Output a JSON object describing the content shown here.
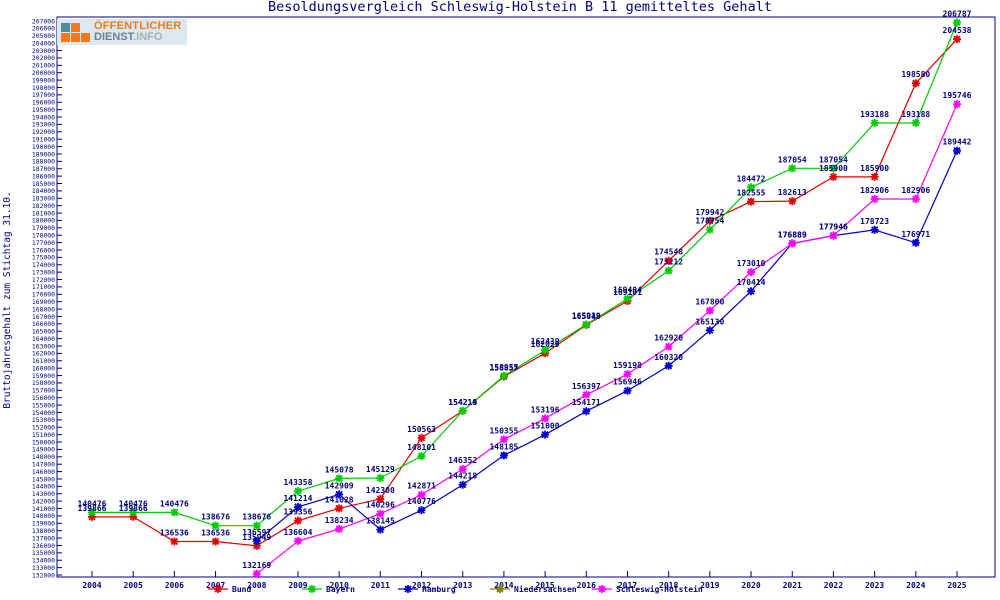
{
  "title": "Besoldungsvergleich Schleswig-Holstein B 11 gemitteltes Gehalt",
  "y_axis_label": "Bruttojahresgehalt zum Stichtag 31.10.",
  "logo": {
    "line1": "ÖFFENTLICHER",
    "line2_a": "DIENST",
    "line2_b": ".INFO"
  },
  "colors": {
    "axis": "#000080",
    "label_text": "#000080",
    "bund": "#e60000",
    "bayern": "#00cc00",
    "hamburg": "#0000cc",
    "niedersachsen": "#808000",
    "schleswig_holstein": "#ff00ff"
  },
  "chart_data": {
    "type": "line",
    "title": "Besoldungsvergleich Schleswig-Holstein B 11 gemitteltes Gehalt",
    "xlabel": "",
    "ylabel": "Bruttojahresgehalt zum Stichtag 31.10.",
    "ylim": [
      132000,
      207000
    ],
    "ytick_step": 1000,
    "grid": false,
    "legend_position": "bottom",
    "x": [
      2004,
      2005,
      2006,
      2007,
      2008,
      2009,
      2010,
      2011,
      2012,
      2013,
      2014,
      2015,
      2016,
      2017,
      2018,
      2019,
      2020,
      2021,
      2022,
      2023,
      2024,
      2025
    ],
    "series": [
      {
        "name": "Bund",
        "color": "#e60000",
        "values": [
          139866,
          139866,
          136536,
          136536,
          135949,
          139356,
          141028,
          142300,
          150563,
          154214,
          158857,
          162029,
          165848,
          169101,
          174548,
          179942,
          182555,
          182613,
          185900,
          185900,
          198580,
          204538
        ]
      },
      {
        "name": "Bayern",
        "color": "#00cc00",
        "values": [
          140476,
          140476,
          140476,
          138676,
          138676,
          143358,
          145078,
          145129,
          148101,
          154219,
          158955,
          162439,
          165919,
          169404,
          173212,
          178754,
          184472,
          187054,
          187054,
          193188,
          193188,
          206787
        ]
      },
      {
        "name": "Hamburg",
        "color": "#0000cc",
        "values": [
          null,
          null,
          null,
          null,
          136597,
          141214,
          142909,
          138145,
          140776,
          144218,
          148185,
          151000,
          154171,
          156946,
          160320,
          165130,
          170414,
          176889,
          177946,
          178723,
          176971,
          189442
        ]
      },
      {
        "name": "Niedersachsen",
        "color": "#808000",
        "values": [
          null,
          null,
          null,
          null,
          null,
          null,
          null,
          null,
          null,
          null,
          null,
          null,
          null,
          null,
          null,
          null,
          null,
          null,
          null,
          null,
          null,
          null
        ]
      },
      {
        "name": "Schleswig-Holstein",
        "color": "#ff00ff",
        "values": [
          null,
          null,
          null,
          null,
          132169,
          136604,
          138234,
          140296,
          142871,
          146352,
          150355,
          153196,
          156397,
          159198,
          162920,
          167800,
          173010,
          176889,
          177946,
          182906,
          182906,
          195746
        ]
      }
    ]
  }
}
